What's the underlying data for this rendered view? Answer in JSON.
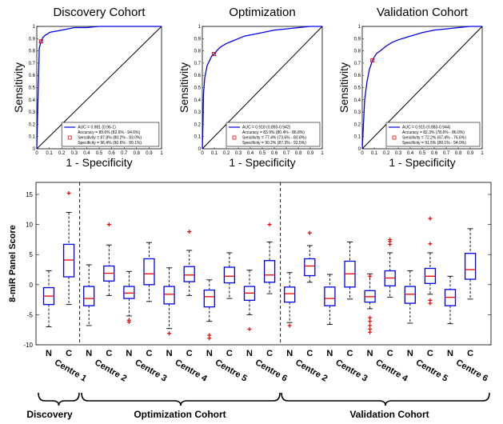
{
  "chart_data": [
    {
      "type": "line",
      "title": "Discovery Cohort",
      "xlabel": "1 - Specificity",
      "ylabel": "Sensitivity",
      "xlim": [
        0,
        1
      ],
      "ylim": [
        0,
        1
      ],
      "ticks": [
        "0",
        "0.1",
        "0.2",
        "0.3",
        "0.4",
        "0.5",
        "0.6",
        "0.7",
        "0.8",
        "0.9",
        "1"
      ],
      "x": [
        0,
        0.02,
        0.034,
        0.04,
        0.05,
        0.07,
        0.09,
        0.1,
        0.12,
        0.15,
        0.2,
        0.25,
        0.3,
        0.4,
        0.5,
        0.6,
        0.8,
        1.0
      ],
      "y": [
        0,
        0.82,
        0.878,
        0.89,
        0.91,
        0.93,
        0.94,
        0.95,
        0.955,
        0.96,
        0.97,
        0.98,
        0.99,
        0.99,
        1,
        1,
        1,
        1
      ],
      "operating_point": {
        "x": 0.034,
        "y": 0.878
      },
      "legend": [
        "AUC = 0.981 (0.96-1)",
        "Accuracy = 89.6% (82.6% - 94.6%)",
        "Sensitivity = 87.8% (80.2% - 93.0%)",
        "Specificity = 96.4% (90.6% - 99.1%)"
      ]
    },
    {
      "type": "line",
      "title": "Optimization",
      "xlabel": "1 - Specificity",
      "ylabel": "Sensitivity",
      "xlim": [
        0,
        1
      ],
      "ylim": [
        0,
        1
      ],
      "ticks": [
        "0",
        "0.1",
        "0.2",
        "0.3",
        "0.4",
        "0.5",
        "0.6",
        "0.7",
        "0.8",
        "0.9",
        "1"
      ],
      "x": [
        0,
        0.005,
        0.01,
        0.02,
        0.04,
        0.06,
        0.08,
        0.098,
        0.12,
        0.15,
        0.2,
        0.25,
        0.3,
        0.35,
        0.4,
        0.5,
        0.6,
        0.7,
        0.8,
        0.9,
        1.0
      ],
      "y": [
        0,
        0.2,
        0.45,
        0.58,
        0.68,
        0.72,
        0.76,
        0.774,
        0.8,
        0.83,
        0.86,
        0.88,
        0.9,
        0.92,
        0.93,
        0.95,
        0.97,
        0.98,
        0.99,
        1,
        1
      ],
      "operating_point": {
        "x": 0.098,
        "y": 0.774
      },
      "legend": [
        "AUC = 0.918 (0.893-0.942)",
        "Accuracy = 83.9% (80.4% - 86.8%)",
        "Sensitivity = 77.4% (73.6% - 80.8%)",
        "Specificity = 90.2% (87.3% - 92.5%)"
      ]
    },
    {
      "type": "line",
      "title": "Validation Cohort",
      "xlabel": "1 - Specificity",
      "ylabel": "Sensitivity",
      "xlim": [
        0,
        1
      ],
      "ylim": [
        0,
        1
      ],
      "ticks": [
        "0",
        "0.1",
        "0.2",
        "0.3",
        "0.4",
        "0.5",
        "0.6",
        "0.7",
        "0.8",
        "0.9",
        "1"
      ],
      "x": [
        0,
        0.01,
        0.02,
        0.04,
        0.06,
        0.085,
        0.1,
        0.12,
        0.15,
        0.2,
        0.25,
        0.3,
        0.4,
        0.5,
        0.6,
        0.7,
        0.8,
        0.9,
        1.0
      ],
      "y": [
        0,
        0.2,
        0.4,
        0.55,
        0.65,
        0.722,
        0.75,
        0.78,
        0.8,
        0.84,
        0.87,
        0.89,
        0.92,
        0.95,
        0.97,
        0.98,
        0.99,
        1,
        1
      ],
      "operating_point": {
        "x": 0.085,
        "y": 0.722
      },
      "legend": [
        "AUC = 0.915 (0.883-0.944)",
        "Accuracy = 82.3% (78.6% - 86.0%)",
        "Sensitivity = 72.2% (67.4% - 76.6%)",
        "Specificity = 91.5% (89.1% - 94.0%)"
      ]
    },
    {
      "type": "box",
      "ylabel": "8-miR Panel Score",
      "ylim": [
        -10,
        17
      ],
      "yticks": [
        -10,
        -5,
        0,
        5,
        10,
        15
      ],
      "group_labels": [
        "N",
        "C"
      ],
      "centre_labels": [
        "Centre 1",
        "Centre 2",
        "Centre 3",
        "Centre 4",
        "Centre 5",
        "Centre 6",
        "Centre 2",
        "Centre 3",
        "Centre 4",
        "Centre 5",
        "Centre 6"
      ],
      "cohort_labels": [
        "Discovery",
        "Optimization Cohort",
        "Validation Cohort"
      ],
      "boxes": [
        {
          "group": "N",
          "min": -7.0,
          "q1": -3.3,
          "median": -1.9,
          "q3": -0.5,
          "max": 2.3,
          "outliers": []
        },
        {
          "group": "C",
          "min": -3.3,
          "q1": 1.3,
          "median": 4.1,
          "q3": 6.7,
          "max": 12.0,
          "outliers": [
            15.2
          ]
        },
        {
          "group": "N",
          "min": -6.8,
          "q1": -3.5,
          "median": -2.3,
          "q3": -0.3,
          "max": 3.3,
          "outliers": []
        },
        {
          "group": "C",
          "min": -1.8,
          "q1": 0.6,
          "median": 1.9,
          "q3": 3.1,
          "max": 6.6,
          "outliers": [
            10.0
          ]
        },
        {
          "group": "N",
          "min": -5.2,
          "q1": -2.3,
          "median": -1.4,
          "q3": -0.3,
          "max": 2.2,
          "outliers": [
            -5.9,
            -6.2
          ]
        },
        {
          "group": "C",
          "min": -2.8,
          "q1": 0.0,
          "median": 1.8,
          "q3": 4.3,
          "max": 7.0,
          "outliers": []
        },
        {
          "group": "N",
          "min": -7.3,
          "q1": -3.2,
          "median": -1.6,
          "q3": -0.3,
          "max": 2.8,
          "outliers": [
            -8.1
          ]
        },
        {
          "group": "C",
          "min": -1.8,
          "q1": 0.5,
          "median": 1.6,
          "q3": 3.0,
          "max": 5.7,
          "outliers": [
            8.8
          ]
        },
        {
          "group": "N",
          "min": -6.1,
          "q1": -3.7,
          "median": -2.0,
          "q3": -0.9,
          "max": 0.8,
          "outliers": [
            -8.4,
            -8.9
          ]
        },
        {
          "group": "C",
          "min": -2.3,
          "q1": 0.3,
          "median": 1.4,
          "q3": 2.9,
          "max": 5.3,
          "outliers": []
        },
        {
          "group": "N",
          "min": -5.0,
          "q1": -2.6,
          "median": -1.4,
          "q3": -0.3,
          "max": 2.4,
          "outliers": [
            -7.4
          ]
        },
        {
          "group": "C",
          "min": -1.5,
          "q1": 0.4,
          "median": 1.6,
          "q3": 4.0,
          "max": 7.1,
          "outliers": [
            10.0
          ]
        },
        {
          "group": "N",
          "min": -6.3,
          "q1": -2.9,
          "median": -1.5,
          "q3": -0.4,
          "max": 2.0,
          "outliers": [
            -6.8
          ]
        },
        {
          "group": "C",
          "min": 0.4,
          "q1": 1.5,
          "median": 3.1,
          "q3": 4.3,
          "max": 6.5,
          "outliers": [
            8.6
          ]
        },
        {
          "group": "N",
          "min": -6.6,
          "q1": -3.5,
          "median": -2.3,
          "q3": -0.4,
          "max": 1.7,
          "outliers": []
        },
        {
          "group": "C",
          "min": -2.4,
          "q1": -0.4,
          "median": 1.8,
          "q3": 3.9,
          "max": 7.1,
          "outliers": []
        },
        {
          "group": "N",
          "min": -4.0,
          "q1": -2.9,
          "median": -2.0,
          "q3": -1.0,
          "max": 1.8,
          "outliers": [
            -5.5,
            -6.1,
            -6.8,
            -7.4,
            -7.9,
            1.4
          ]
        },
        {
          "group": "C",
          "min": -2.1,
          "q1": -0.2,
          "median": 1.1,
          "q3": 2.3,
          "max": 5.3,
          "outliers": [
            6.7,
            7.2,
            7.5
          ]
        },
        {
          "group": "N",
          "min": -6.4,
          "q1": -3.1,
          "median": -1.6,
          "q3": -0.3,
          "max": 2.3,
          "outliers": []
        },
        {
          "group": "C",
          "min": -1.6,
          "q1": 0.2,
          "median": 1.4,
          "q3": 2.7,
          "max": 5.3,
          "outliers": [
            6.8,
            11.0,
            -2.6,
            -3.1
          ]
        },
        {
          "group": "N",
          "min": -6.5,
          "q1": -3.5,
          "median": -2.1,
          "q3": -0.8,
          "max": 1.4,
          "outliers": []
        },
        {
          "group": "C",
          "min": -2.4,
          "q1": 0.9,
          "median": 2.5,
          "q3": 5.2,
          "max": 9.3,
          "outliers": []
        }
      ]
    }
  ]
}
